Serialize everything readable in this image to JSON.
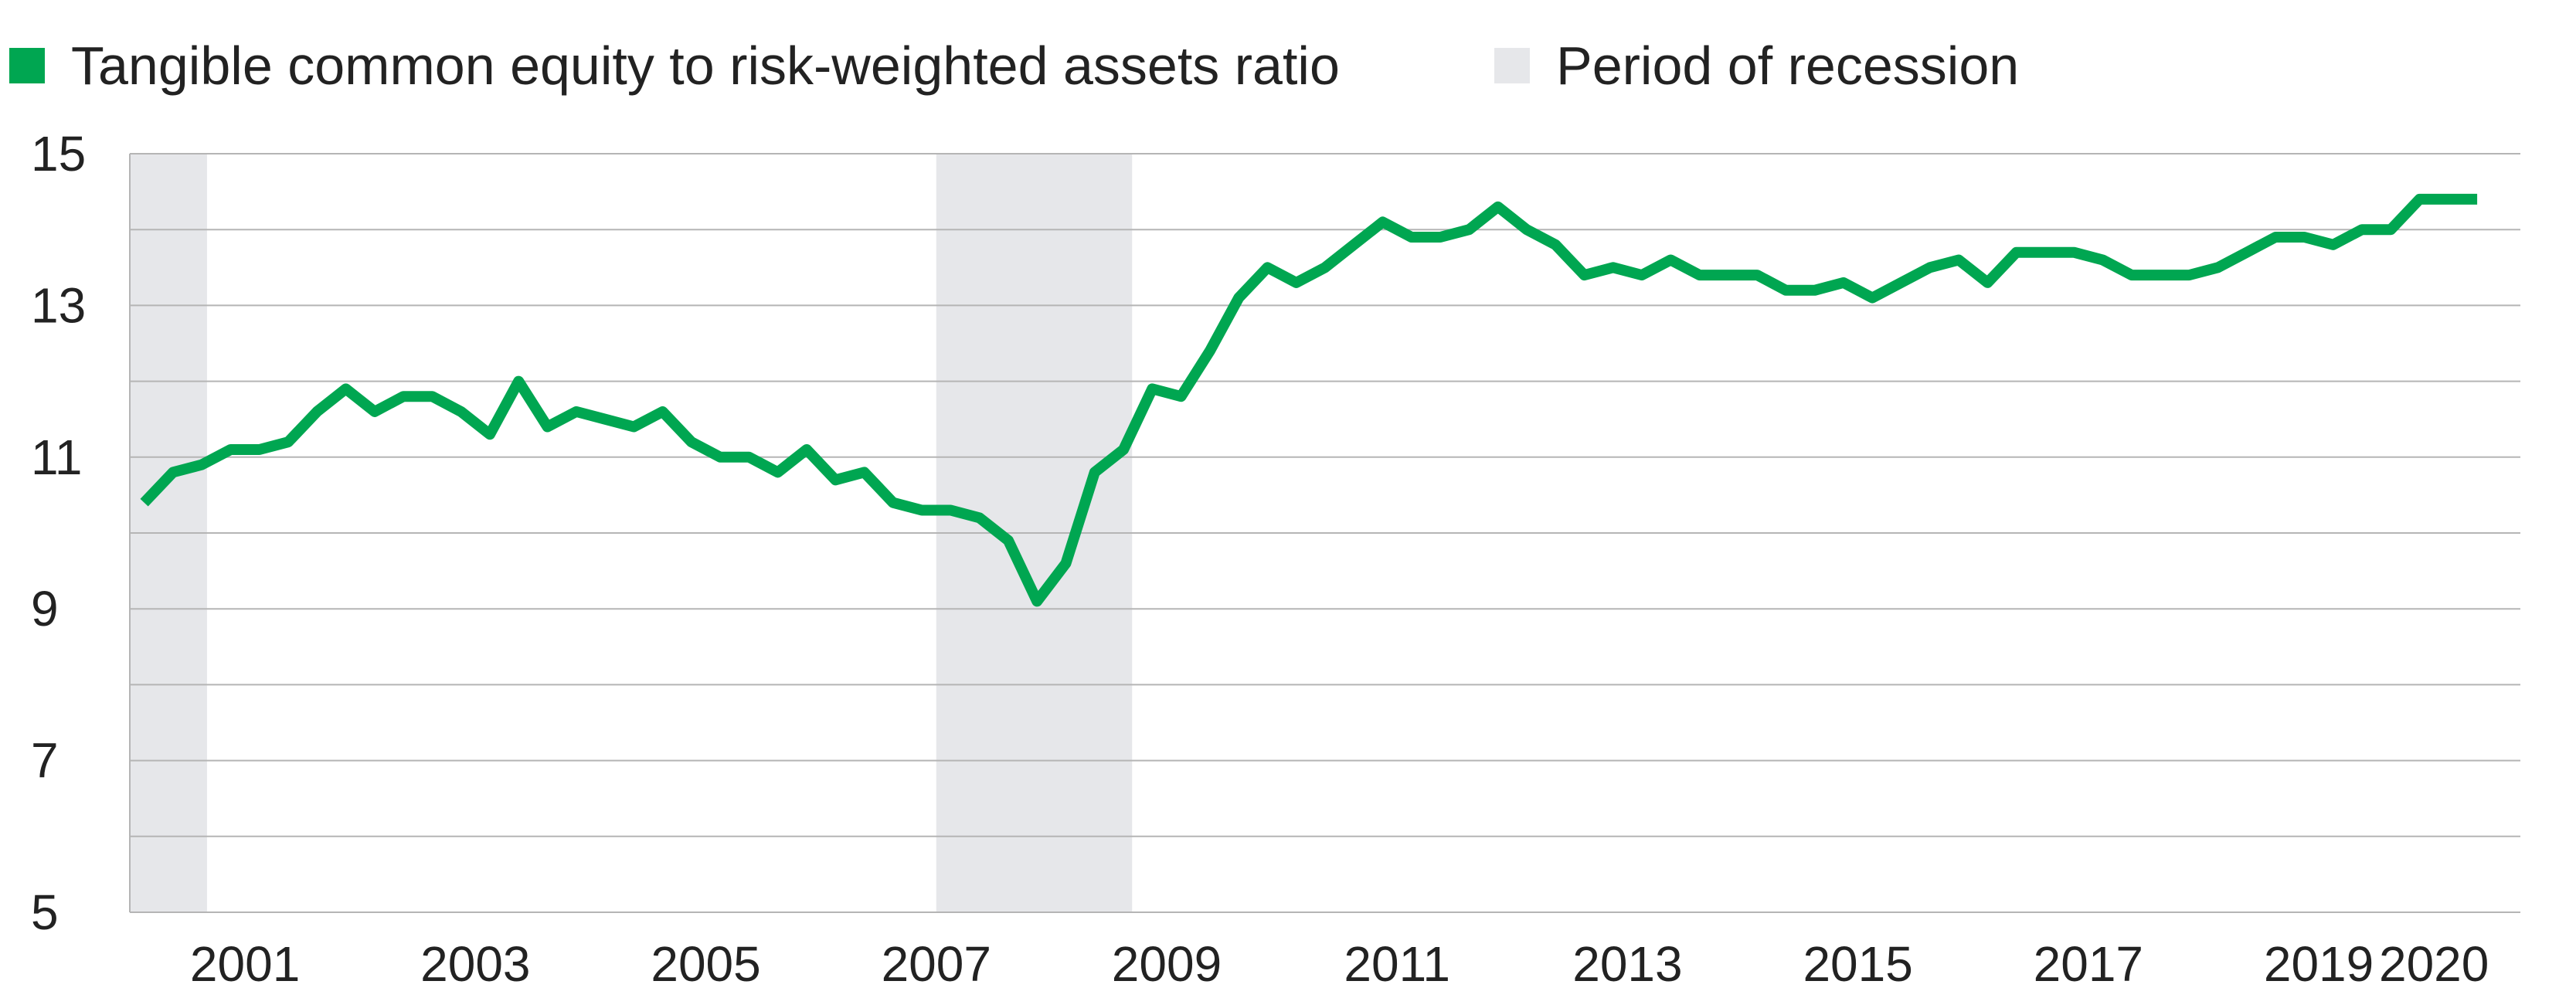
{
  "legend": {
    "series_label": "Tangible common equity to risk-weighted assets ratio",
    "recession_label": "Period of recession"
  },
  "colors": {
    "series": "#00a651",
    "recession": "#e6e7ea",
    "grid": "#b5b5b5",
    "text": "#222222"
  },
  "chart_data": {
    "type": "line",
    "title": "",
    "xlabel": "",
    "ylabel": "",
    "ylim": [
      5,
      15
    ],
    "xlim": [
      2000.0,
      2020.75
    ],
    "y_ticks": [
      5,
      7,
      9,
      11,
      13,
      15
    ],
    "x_tick_labels": [
      "2001",
      "2003",
      "2005",
      "2007",
      "2009",
      "2011",
      "2013",
      "2015",
      "2017",
      "2019",
      "2020"
    ],
    "x_tick_values": [
      2001,
      2003,
      2005,
      2007,
      2009,
      2011,
      2013,
      2015,
      2017,
      2019,
      2020
    ],
    "grid": true,
    "legend_position": "top-left",
    "recessions": [
      {
        "start": 2000.0,
        "end": 2000.67
      },
      {
        "start": 2007.0,
        "end": 2008.7
      }
    ],
    "series": [
      {
        "name": "Tangible common equity to risk-weighted assets ratio",
        "x": [
          2000.125,
          2000.375,
          2000.625,
          2000.875,
          2001.125,
          2001.375,
          2001.625,
          2001.875,
          2002.125,
          2002.375,
          2002.625,
          2002.875,
          2003.125,
          2003.375,
          2003.625,
          2003.875,
          2004.125,
          2004.375,
          2004.625,
          2004.875,
          2005.125,
          2005.375,
          2005.625,
          2005.875,
          2006.125,
          2006.375,
          2006.625,
          2006.875,
          2007.125,
          2007.375,
          2007.625,
          2007.875,
          2008.125,
          2008.375,
          2008.625,
          2008.875,
          2009.125,
          2009.375,
          2009.625,
          2009.875,
          2010.125,
          2010.375,
          2010.625,
          2010.875,
          2011.125,
          2011.375,
          2011.625,
          2011.875,
          2012.125,
          2012.375,
          2012.625,
          2012.875,
          2013.125,
          2013.375,
          2013.625,
          2013.875,
          2014.125,
          2014.375,
          2014.625,
          2014.875,
          2015.125,
          2015.375,
          2015.625,
          2015.875,
          2016.125,
          2016.375,
          2016.625,
          2016.875,
          2017.125,
          2017.375,
          2017.625,
          2017.875,
          2018.125,
          2018.375,
          2018.625,
          2018.875,
          2019.125,
          2019.375,
          2019.625,
          2019.875,
          2020.125,
          2020.375
        ],
        "values": [
          10.4,
          10.8,
          10.9,
          11.1,
          11.1,
          11.2,
          11.6,
          11.9,
          11.6,
          11.8,
          11.8,
          11.6,
          11.3,
          12.0,
          11.4,
          11.6,
          11.5,
          11.4,
          11.6,
          11.2,
          11.0,
          11.0,
          10.8,
          11.1,
          10.7,
          10.8,
          10.4,
          10.3,
          10.3,
          10.2,
          9.9,
          9.1,
          9.6,
          10.8,
          11.1,
          11.9,
          11.8,
          12.4,
          13.1,
          13.5,
          13.3,
          13.5,
          13.8,
          14.1,
          13.9,
          13.9,
          14.0,
          14.3,
          14.0,
          13.8,
          13.4,
          13.5,
          13.4,
          13.6,
          13.4,
          13.4,
          13.4,
          13.2,
          13.2,
          13.3,
          13.1,
          13.3,
          13.5,
          13.6,
          13.3,
          13.7,
          13.7,
          13.7,
          13.6,
          13.4,
          13.4,
          13.4,
          13.5,
          13.7,
          13.9,
          13.9,
          13.8,
          14.0,
          14.0,
          14.4,
          14.4,
          14.4
        ]
      }
    ]
  }
}
